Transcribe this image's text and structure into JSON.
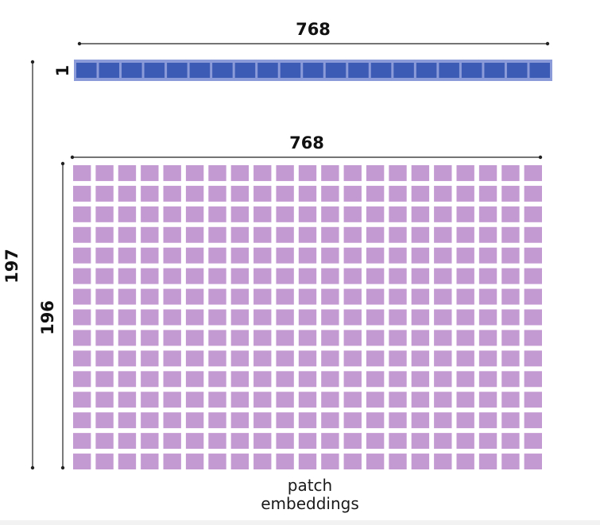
{
  "cls_token": {
    "width_label": "768",
    "height_label": "1",
    "cells": 21,
    "fill_color": "#3c5bb5",
    "border_color": "#8b9ad8"
  },
  "patch_embeddings": {
    "width_label": "768",
    "height_label": "196",
    "height_label_color": "#f08a18",
    "rows": 15,
    "cols": 21,
    "cell_color": "#c49ad2",
    "caption_line1": "patch",
    "caption_line2": "embeddings"
  },
  "total": {
    "height_label": "197"
  }
}
